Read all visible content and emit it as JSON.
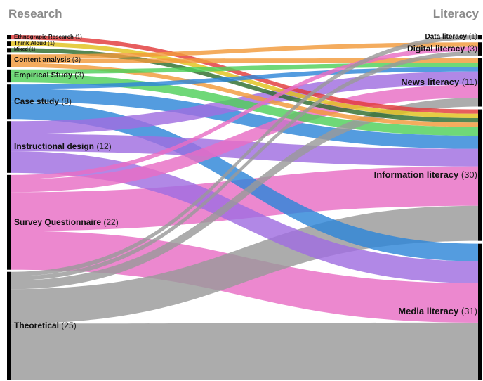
{
  "headers": {
    "left": "Research",
    "right": "Literacy"
  },
  "colors": {
    "ethnographic": "#e23a3a",
    "think_aloud": "#e0c21c",
    "mixed": "#2e6e2e",
    "content_analysis": "#f29a3a",
    "empirical": "#4fd05a",
    "case_study": "#2e86d8",
    "instructional": "#a06ee0",
    "survey": "#e86ec4",
    "theoretical": "#9a9a9a"
  },
  "left_nodes": [
    {
      "id": "eth",
      "name": "Ethnograpic Research",
      "count": "(1)",
      "value": 1,
      "color_key": "ethnographic",
      "font": 8
    },
    {
      "id": "think",
      "name": "Think Aloud",
      "count": "(1)",
      "value": 1,
      "color_key": "think_aloud",
      "font": 8
    },
    {
      "id": "mixed",
      "name": "Mixed",
      "count": "(1)",
      "value": 1,
      "color_key": "mixed",
      "font": 7
    },
    {
      "id": "content",
      "name": "Content analysis",
      "count": "(3)",
      "value": 3,
      "color_key": "content_analysis",
      "font": 10
    },
    {
      "id": "emp",
      "name": "Empirical Study",
      "count": "(3)",
      "value": 3,
      "color_key": "empirical",
      "font": 11
    },
    {
      "id": "case",
      "name": "Case study",
      "count": "(8)",
      "value": 8,
      "color_key": "case_study",
      "font": 12
    },
    {
      "id": "instr",
      "name": "Instructional design",
      "count": "(12)",
      "value": 12,
      "color_key": "instructional",
      "font": 12
    },
    {
      "id": "survey",
      "name": "Survey Questionnaire",
      "count": "(22)",
      "value": 22,
      "color_key": "survey",
      "font": 12
    },
    {
      "id": "theo",
      "name": "Theoretical",
      "count": "(25)",
      "value": 25,
      "color_key": "theoretical",
      "font": 12
    }
  ],
  "right_nodes": [
    {
      "id": "data",
      "name": "Data literacy",
      "count": "(1)",
      "value": 1,
      "font": 10
    },
    {
      "id": "digital",
      "name": "Digital literacy",
      "count": "(3)",
      "value": 3,
      "font": 12
    },
    {
      "id": "news",
      "name": "News literacy",
      "count": "(11)",
      "value": 11,
      "font": 13
    },
    {
      "id": "info",
      "name": "Information literacy",
      "count": "(30)",
      "value": 30,
      "font": 13
    },
    {
      "id": "media",
      "name": "Media literacy",
      "count": "(31)",
      "value": 31,
      "font": 13
    }
  ],
  "links": [
    {
      "source": "eth",
      "target": "info",
      "value": 1
    },
    {
      "source": "think",
      "target": "info",
      "value": 1
    },
    {
      "source": "mixed",
      "target": "info",
      "value": 1
    },
    {
      "source": "content",
      "target": "digital",
      "value": 1
    },
    {
      "source": "content",
      "target": "news",
      "value": 1
    },
    {
      "source": "content",
      "target": "info",
      "value": 1
    },
    {
      "source": "emp",
      "target": "news",
      "value": 1
    },
    {
      "source": "emp",
      "target": "info",
      "value": 2
    },
    {
      "source": "case",
      "target": "news",
      "value": 1
    },
    {
      "source": "case",
      "target": "info",
      "value": 3
    },
    {
      "source": "case",
      "target": "media",
      "value": 4
    },
    {
      "source": "instr",
      "target": "news",
      "value": 3
    },
    {
      "source": "instr",
      "target": "info",
      "value": 4
    },
    {
      "source": "instr",
      "target": "media",
      "value": 5
    },
    {
      "source": "survey",
      "target": "digital",
      "value": 1
    },
    {
      "source": "survey",
      "target": "news",
      "value": 3
    },
    {
      "source": "survey",
      "target": "info",
      "value": 9
    },
    {
      "source": "survey",
      "target": "media",
      "value": 9
    },
    {
      "source": "theo",
      "target": "data",
      "value": 1
    },
    {
      "source": "theo",
      "target": "digital",
      "value": 1
    },
    {
      "source": "theo",
      "target": "news",
      "value": 2
    },
    {
      "source": "theo",
      "target": "info",
      "value": 8
    },
    {
      "source": "theo",
      "target": "media",
      "value": 13
    }
  ]
}
